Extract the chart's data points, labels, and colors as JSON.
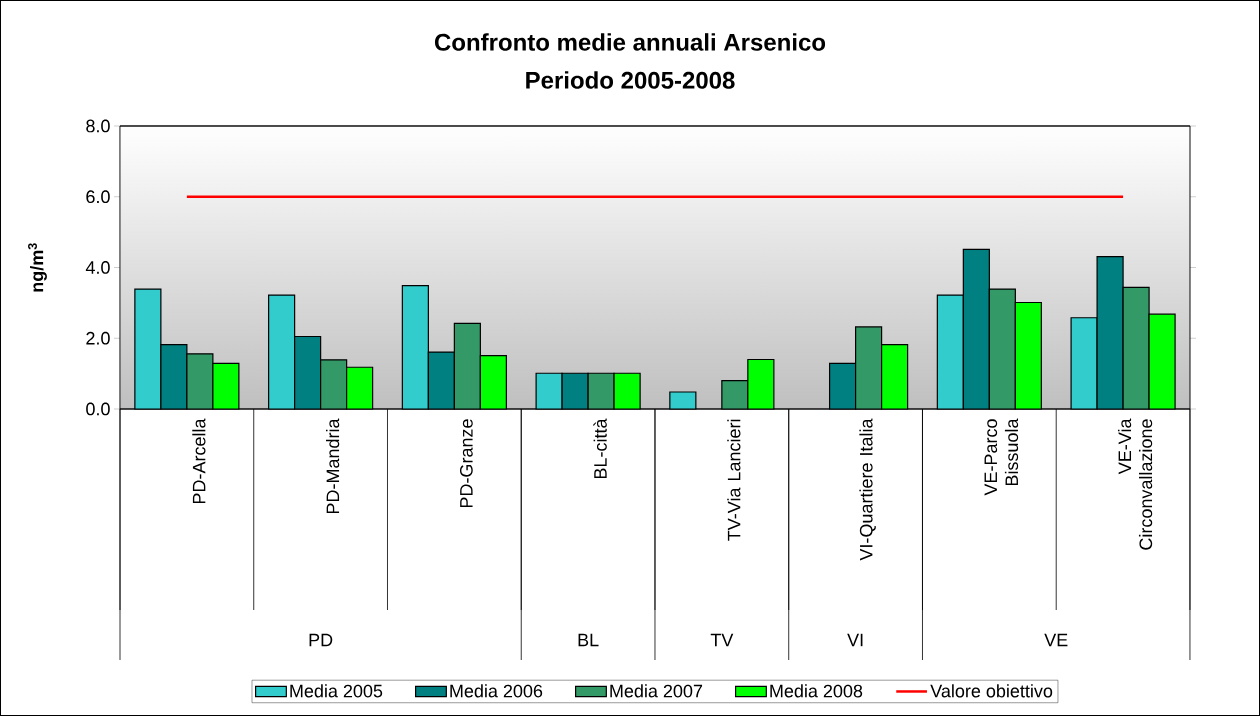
{
  "chart_data": {
    "type": "bar",
    "title": "Confronto medie annuali Arsenico",
    "subtitle": "Periodo 2005-2008",
    "ylabel": "ng/m$^{3}$",
    "categories": [
      "PD-Arcella",
      "PD-Mandria",
      "PD-Granze",
      "BL-città",
      "TV-Via Lancieri",
      "VI-Quartiere Italia",
      "VE-Parco Bissuola",
      "VE-Via Circonvallazione"
    ],
    "series": [
      {
        "name": "Media 2005",
        "color": "#33cccc",
        "values": [
          3.39,
          3.22,
          3.49,
          1.01,
          0.48,
          null,
          3.22,
          2.58
        ]
      },
      {
        "name": "Media 2006",
        "color": "#008080",
        "values": [
          1.82,
          2.05,
          1.61,
          1.01,
          null,
          1.29,
          4.51,
          4.31
        ]
      },
      {
        "name": "Media 2007",
        "color": "#339966",
        "values": [
          1.56,
          1.39,
          2.42,
          1.01,
          0.8,
          2.32,
          3.39,
          3.44
        ]
      },
      {
        "name": "Media 2008",
        "color": "#00ff00",
        "values": [
          1.29,
          1.18,
          1.51,
          1.01,
          1.4,
          1.82,
          3.01,
          2.68
        ]
      },
      {
        "name": "Valore obiettivo",
        "type": "line",
        "color": "#ff0000",
        "values": [
          6,
          6,
          6,
          6,
          6,
          6,
          6,
          6
        ]
      }
    ],
    "annotations": [
      "PD",
      "BL",
      "TV",
      "VI",
      "VE"
    ],
    "ylim": [
      0,
      8
    ],
    "yticks": [
      {
        "value": 0,
        "label": "0.0"
      },
      {
        "value": 2,
        "label": "2.0"
      },
      {
        "value": 4,
        "label": "4.0"
      },
      {
        "value": 6,
        "label": "6.0"
      },
      {
        "value": 8,
        "label": "8.0"
      }
    ],
    "grid": "y",
    "legend": "bottom",
    "marker": "none"
  }
}
